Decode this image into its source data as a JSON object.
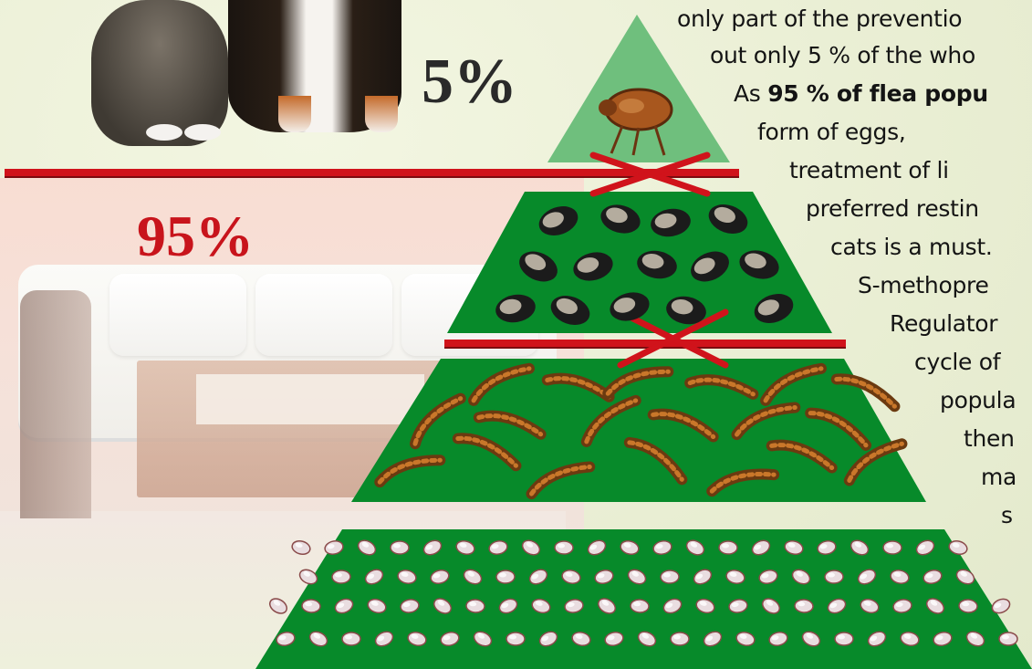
{
  "percentages": {
    "adult": "5%",
    "immature": "95%"
  },
  "text_lines": [
    "only part of the preventio",
    "out only 5 % of the who",
    "As ",
    "95 % of flea popu",
    "form   of   eggs,",
    "treatment   of   li",
    "preferred  restin",
    "cats is a must.",
    "S-methopre",
    "Regulator",
    "cycle  of",
    "popula",
    "then",
    "ma",
    "s"
  ],
  "colors": {
    "pyramid_dark": "#078a2a",
    "pyramid_light": "#6fbf7d",
    "red": "#d0131b",
    "background": "#eef2d8"
  },
  "icons": {
    "flea": "flea-icon",
    "egg": "egg-icon",
    "larva": "larva-icon",
    "pupa": "pupa-icon",
    "cross": "cross-icon"
  }
}
